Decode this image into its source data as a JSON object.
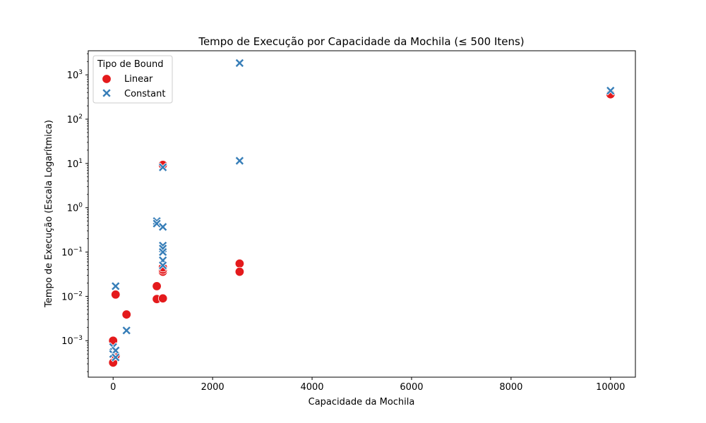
{
  "chart_data": {
    "type": "scatter",
    "title": "Tempo de Execução por Capacidade da Mochila (≤ 500 Itens)",
    "xlabel": "Capacidade da Mochila",
    "ylabel": "Tempo de Execução (Escala Logarítmica)",
    "xlim": [
      -500,
      10500
    ],
    "ylim": [
      0.00015,
      3500
    ],
    "yscale": "log",
    "x_ticks": [
      0,
      2000,
      4000,
      6000,
      8000,
      10000
    ],
    "y_ticks": [
      {
        "base": "10",
        "exp": "−3",
        "value": 0.001
      },
      {
        "base": "10",
        "exp": "−2",
        "value": 0.01
      },
      {
        "base": "10",
        "exp": "−1",
        "value": 0.1
      },
      {
        "base": "10",
        "exp": "0",
        "value": 1
      },
      {
        "base": "10",
        "exp": "1",
        "value": 10
      },
      {
        "base": "10",
        "exp": "2",
        "value": 100
      },
      {
        "base": "10",
        "exp": "3",
        "value": 1000
      }
    ],
    "grid": false,
    "legend": {
      "title": "Tipo de Bound",
      "placement": "top-left"
    },
    "series": [
      {
        "name": "Linear",
        "marker": "circle",
        "color": "#e41a1c",
        "points": [
          {
            "x": 0,
            "y": 0.001
          },
          {
            "x": 0,
            "y": 0.00032
          },
          {
            "x": 50,
            "y": 0.011
          },
          {
            "x": 50,
            "y": 0.00046
          },
          {
            "x": 269,
            "y": 0.0039
          },
          {
            "x": 878,
            "y": 0.017
          },
          {
            "x": 878,
            "y": 0.0087
          },
          {
            "x": 1000,
            "y": 0.009
          },
          {
            "x": 1000,
            "y": 9.3
          },
          {
            "x": 1000,
            "y": 0.036
          },
          {
            "x": 1000,
            "y": 0.04
          },
          {
            "x": 1000,
            "y": 0.045
          },
          {
            "x": 2543,
            "y": 0.055
          },
          {
            "x": 2543,
            "y": 0.036
          },
          {
            "x": 10000,
            "y": 365
          }
        ]
      },
      {
        "name": "Constant",
        "marker": "x",
        "color": "#377eb8",
        "points": [
          {
            "x": 0,
            "y": 0.00072
          },
          {
            "x": 0,
            "y": 0.0005
          },
          {
            "x": 50,
            "y": 0.017
          },
          {
            "x": 50,
            "y": 0.0006
          },
          {
            "x": 50,
            "y": 0.00042
          },
          {
            "x": 269,
            "y": 0.0017
          },
          {
            "x": 878,
            "y": 0.5
          },
          {
            "x": 878,
            "y": 0.44
          },
          {
            "x": 1000,
            "y": 8.2
          },
          {
            "x": 1000,
            "y": 0.37
          },
          {
            "x": 1000,
            "y": 0.14
          },
          {
            "x": 1000,
            "y": 0.12
          },
          {
            "x": 1000,
            "y": 0.1
          },
          {
            "x": 1000,
            "y": 0.065
          },
          {
            "x": 1000,
            "y": 0.05
          },
          {
            "x": 2543,
            "y": 1850
          },
          {
            "x": 2543,
            "y": 11.5
          },
          {
            "x": 10000,
            "y": 440
          }
        ]
      }
    ]
  }
}
